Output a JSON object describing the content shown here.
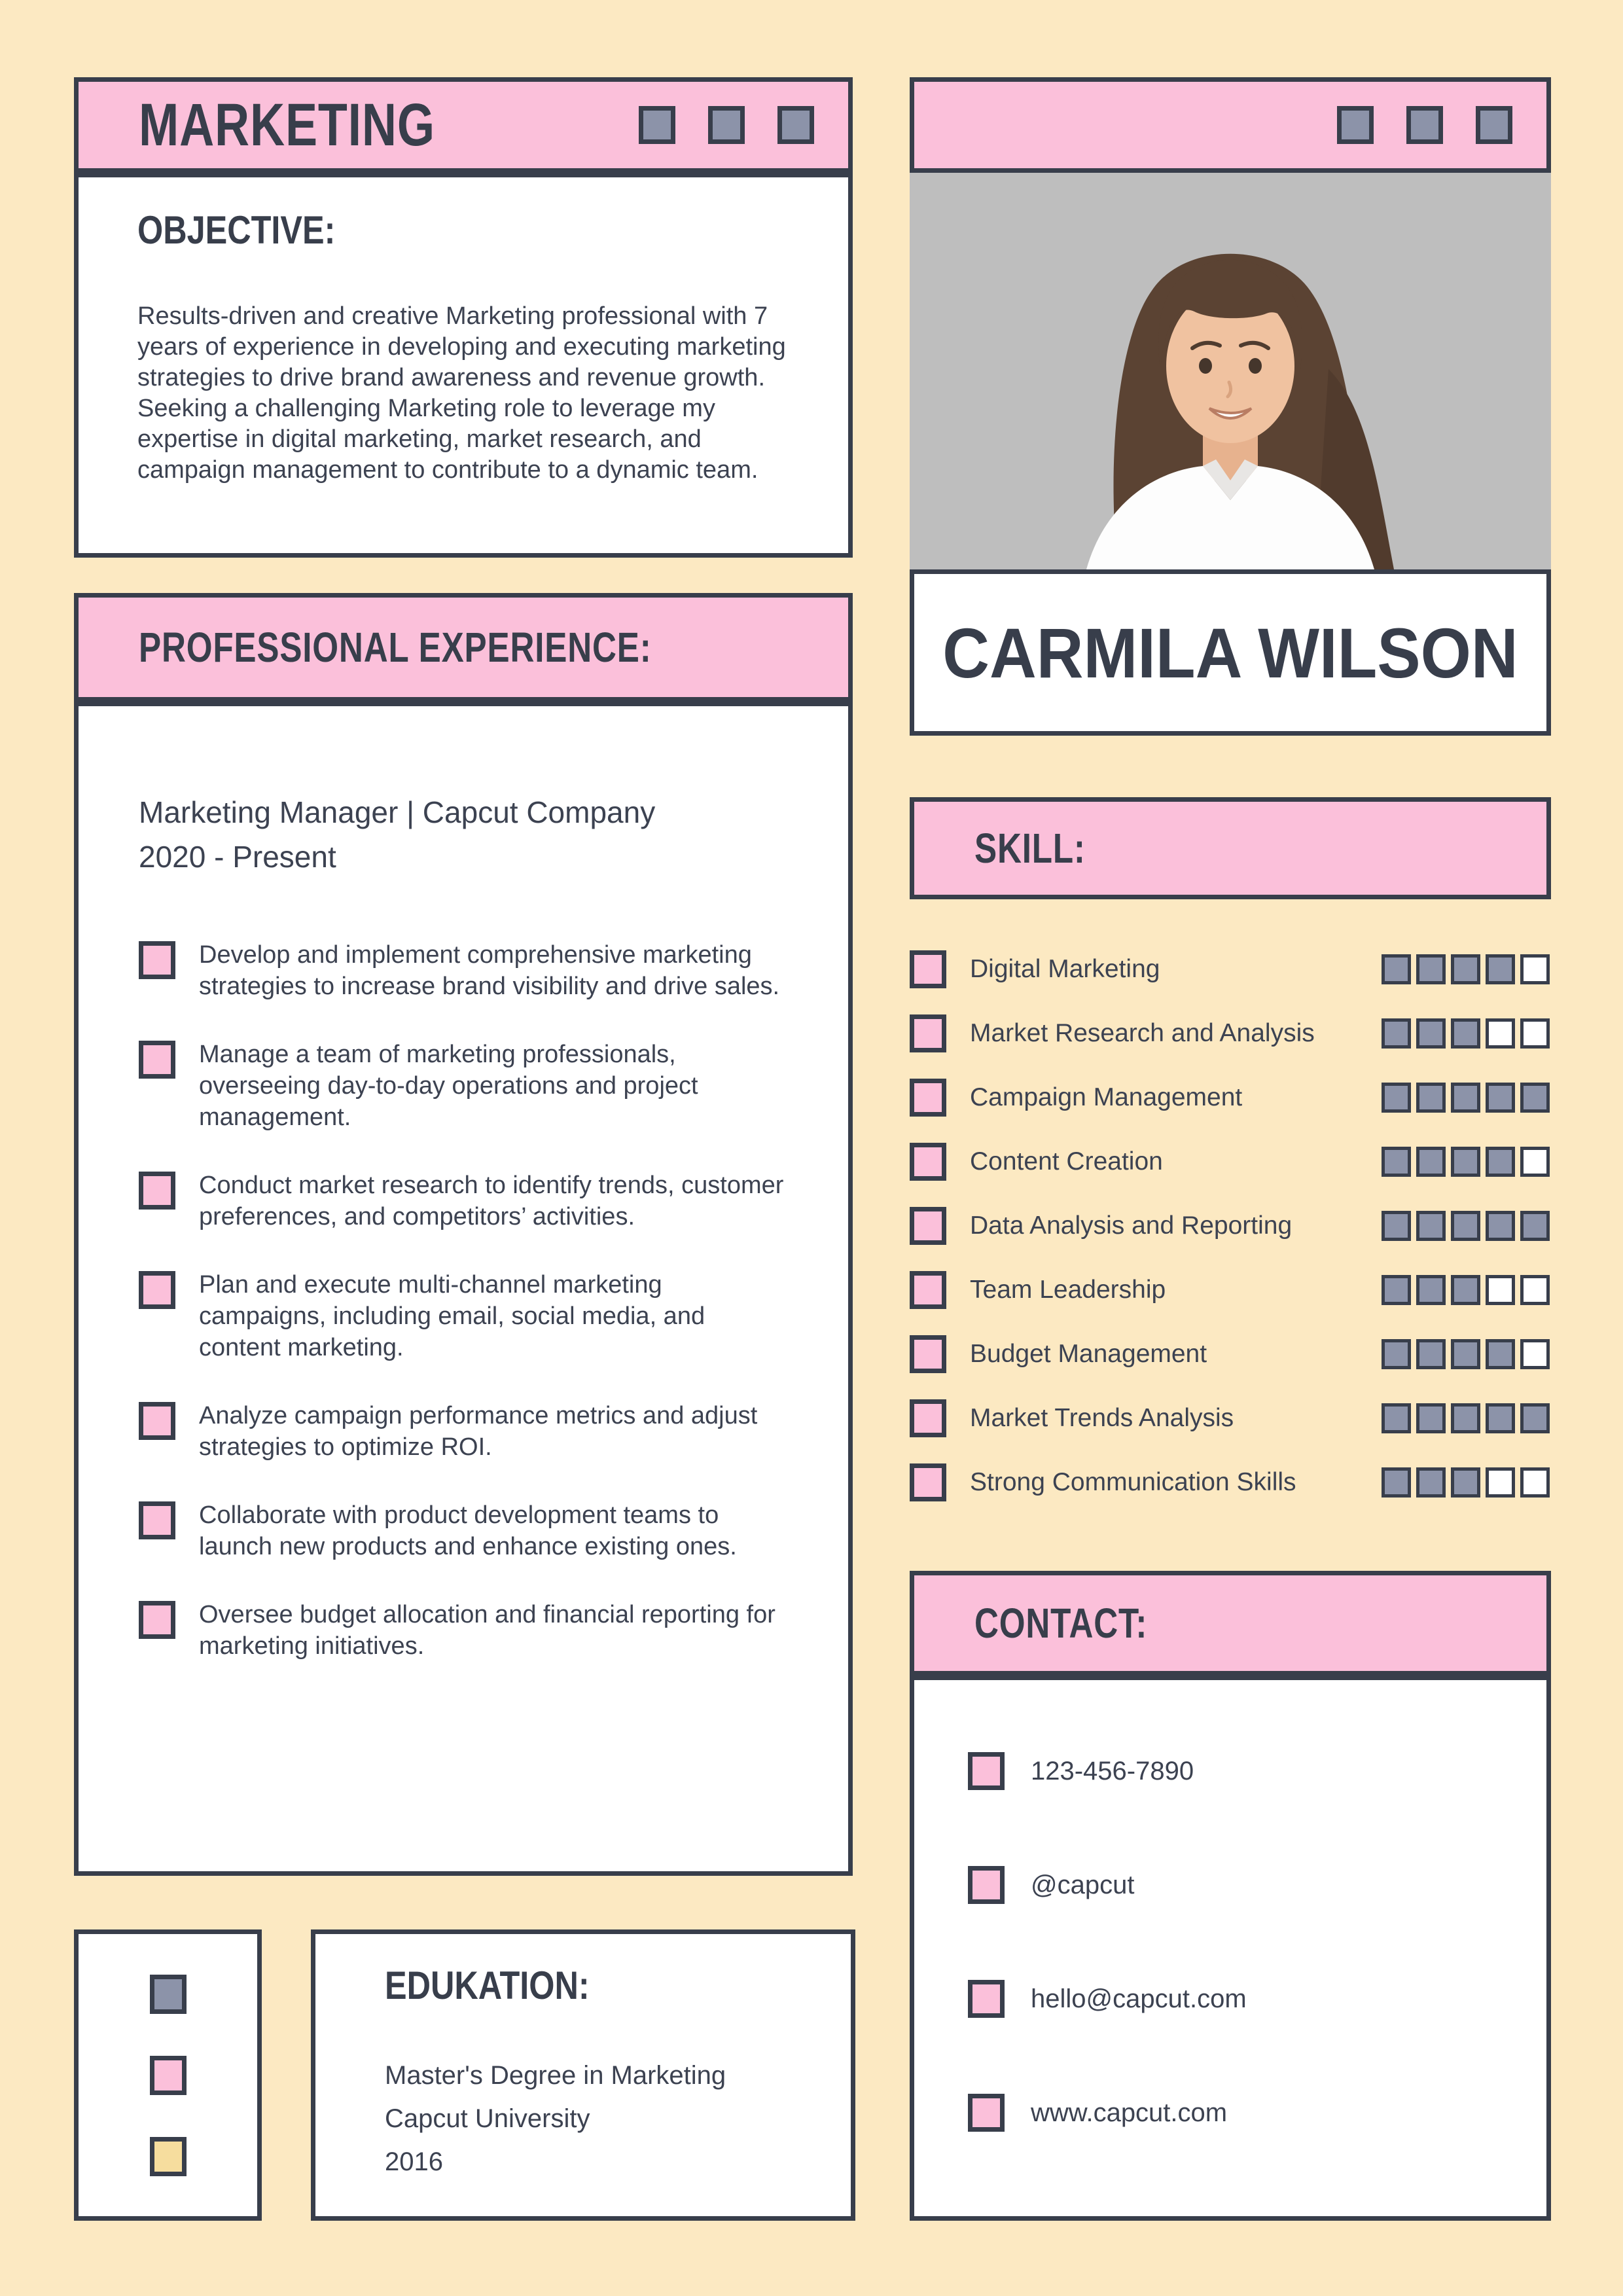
{
  "colors": {
    "pink": "#FBC0DA",
    "cream": "#FCE9C2",
    "slate_blue": "#8C93A9",
    "ink": "#383E4B",
    "yellow": "#F6DD9E",
    "photo_background": "#BEBEBE"
  },
  "left": {
    "header": {
      "title": "MARKETING"
    },
    "objective": {
      "heading": "OBJECTIVE:",
      "body": "Results-driven and creative Marketing professional with 7 years of experience in developing and executing marketing strategies to drive brand awareness and revenue growth. Seeking a challenging Marketing role to leverage my expertise in digital marketing, market research, and campaign management to contribute to a dynamic team."
    },
    "experience": {
      "heading": "PROFESSIONAL EXPERIENCE:",
      "job_title": "Marketing Manager | Capcut Company",
      "job_period": "2020 - Present",
      "bullets": [
        "Develop and implement comprehensive marketing strategies to increase brand visibility and drive sales.",
        "Manage a team of marketing professionals, overseeing day-to-day operations and project management.",
        "Conduct market research to identify trends, customer preferences, and competitors’ activities.",
        "Plan and execute multi-channel marketing campaigns, including email, social media, and content marketing.",
        "Analyze campaign performance metrics and adjust strategies to optimize ROI.",
        "Collaborate with product development teams to launch new products and enhance existing ones.",
        "Oversee budget allocation and financial reporting for marketing initiatives."
      ]
    },
    "education": {
      "heading": "EDUKATION:",
      "degree": "Master's Degree in Marketing",
      "school": "Capcut University",
      "year": "2016"
    }
  },
  "right": {
    "name": "CARMILA WILSON",
    "skills": {
      "heading": "SKILL:",
      "max_rating": 5,
      "items": [
        {
          "label": "Digital Marketing",
          "rating": 4
        },
        {
          "label": "Market Research and Analysis",
          "rating": 3
        },
        {
          "label": "Campaign Management",
          "rating": 5
        },
        {
          "label": "Content Creation",
          "rating": 4
        },
        {
          "label": "Data Analysis and Reporting",
          "rating": 5
        },
        {
          "label": "Team Leadership",
          "rating": 3
        },
        {
          "label": "Budget Management",
          "rating": 4
        },
        {
          "label": "Market Trends Analysis",
          "rating": 5
        },
        {
          "label": "Strong Communication Skills",
          "rating": 3
        }
      ]
    },
    "contact": {
      "heading": "CONTACT:",
      "items": [
        {
          "label": "123-456-7890"
        },
        {
          "label": "@capcut"
        },
        {
          "label": "hello@capcut.com"
        },
        {
          "label": "www.capcut.com"
        }
      ]
    }
  }
}
